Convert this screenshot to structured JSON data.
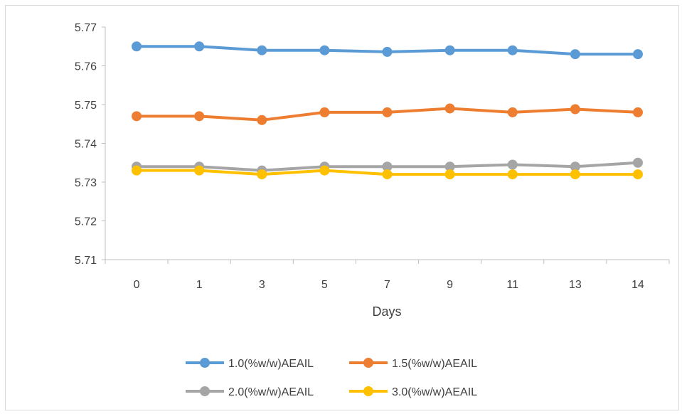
{
  "chart_data": {
    "type": "line",
    "title": "",
    "xlabel": "Days",
    "ylabel": "",
    "categories": [
      "0",
      "1",
      "3",
      "5",
      "7",
      "9",
      "11",
      "13",
      "14"
    ],
    "ylim": [
      5.71,
      5.77
    ],
    "yticks": [
      "5.71",
      "5.72",
      "5.73",
      "5.74",
      "5.75",
      "5.76",
      "5.77"
    ],
    "grid": false,
    "legend_position": "bottom",
    "series": [
      {
        "name": "1.0(%w/w)AEAIL",
        "color": "#5b9bd5",
        "values": [
          5.765,
          5.765,
          5.764,
          5.764,
          5.7636,
          5.764,
          5.764,
          5.763,
          5.763
        ]
      },
      {
        "name": "1.5(%w/w)AEAIL",
        "color": "#ed7d31",
        "values": [
          5.747,
          5.747,
          5.746,
          5.748,
          5.748,
          5.749,
          5.748,
          5.7488,
          5.748
        ]
      },
      {
        "name": "2.0(%w/w)AEAIL",
        "color": "#a5a5a5",
        "values": [
          5.734,
          5.734,
          5.733,
          5.734,
          5.734,
          5.734,
          5.7345,
          5.734,
          5.735
        ]
      },
      {
        "name": "3.0(%w/w)AEAIL",
        "color": "#ffc000",
        "values": [
          5.733,
          5.733,
          5.732,
          5.733,
          5.732,
          5.732,
          5.732,
          5.732,
          5.732
        ]
      }
    ]
  }
}
